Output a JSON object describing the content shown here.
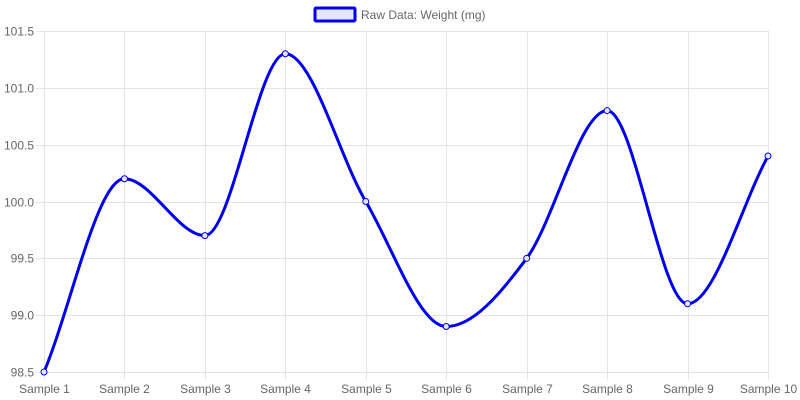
{
  "chart_data": {
    "type": "line",
    "title": "",
    "xlabel": "",
    "ylabel": "",
    "categories": [
      "Sample 1",
      "Sample 2",
      "Sample 3",
      "Sample 4",
      "Sample 5",
      "Sample 6",
      "Sample 7",
      "Sample 8",
      "Sample 9",
      "Sample 10"
    ],
    "series": [
      {
        "name": "Raw Data: Weight (mg)",
        "values": [
          98.5,
          100.2,
          99.7,
          101.3,
          100.0,
          98.9,
          99.5,
          100.8,
          99.1,
          100.4
        ],
        "color": "#0000ee",
        "fill_color": "#e6e6fa"
      }
    ],
    "ylim": [
      98.5,
      101.5
    ],
    "yticks": [
      "98.5",
      "99.0",
      "99.5",
      "100.0",
      "100.5",
      "101.0",
      "101.5"
    ],
    "ytick_values": [
      98.5,
      99.0,
      99.5,
      100.0,
      100.5,
      101.0,
      101.5
    ],
    "grid": true,
    "legend_position": "top-center",
    "curve": "smooth"
  }
}
